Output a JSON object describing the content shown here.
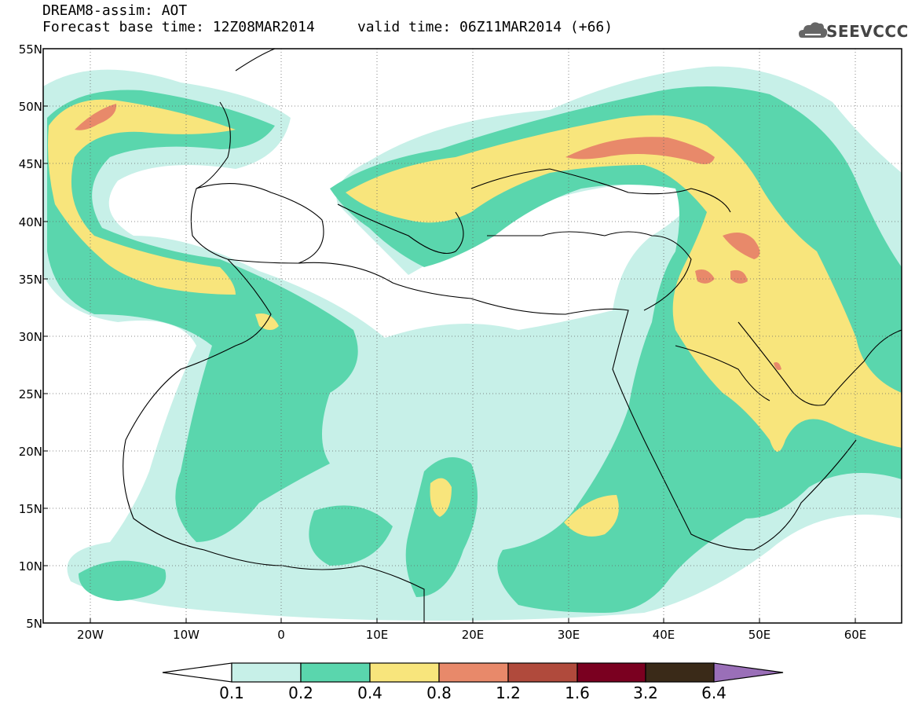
{
  "header": {
    "line1": "DREAM8-assim: AOT",
    "line2": "Forecast base time: 12Z08MAR2014     valid time: 06Z11MAR2014 (+66)",
    "logo_text": "SEEVCCC"
  },
  "map": {
    "lat_labels": [
      "55N",
      "50N",
      "45N",
      "40N",
      "35N",
      "30N",
      "25N",
      "20N",
      "15N",
      "10N",
      "5N"
    ],
    "lon_labels": [
      "20W",
      "10W",
      "0",
      "10E",
      "20E",
      "30E",
      "40E",
      "50E",
      "60E"
    ],
    "grid": "dotted"
  },
  "colors": {
    "c01": "#c7f0e8",
    "c02": "#5ad6ad",
    "c04": "#f8e57c",
    "c08": "#e8896a",
    "c12": "#b04a3c",
    "c16": "#7a0020",
    "c32": "#3a2a18",
    "c64": "#9a6fb8"
  },
  "colorbar": {
    "labels": [
      "0.1",
      "0.2",
      "0.4",
      "0.8",
      "1.2",
      "1.6",
      "3.2",
      "6.4"
    ]
  }
}
